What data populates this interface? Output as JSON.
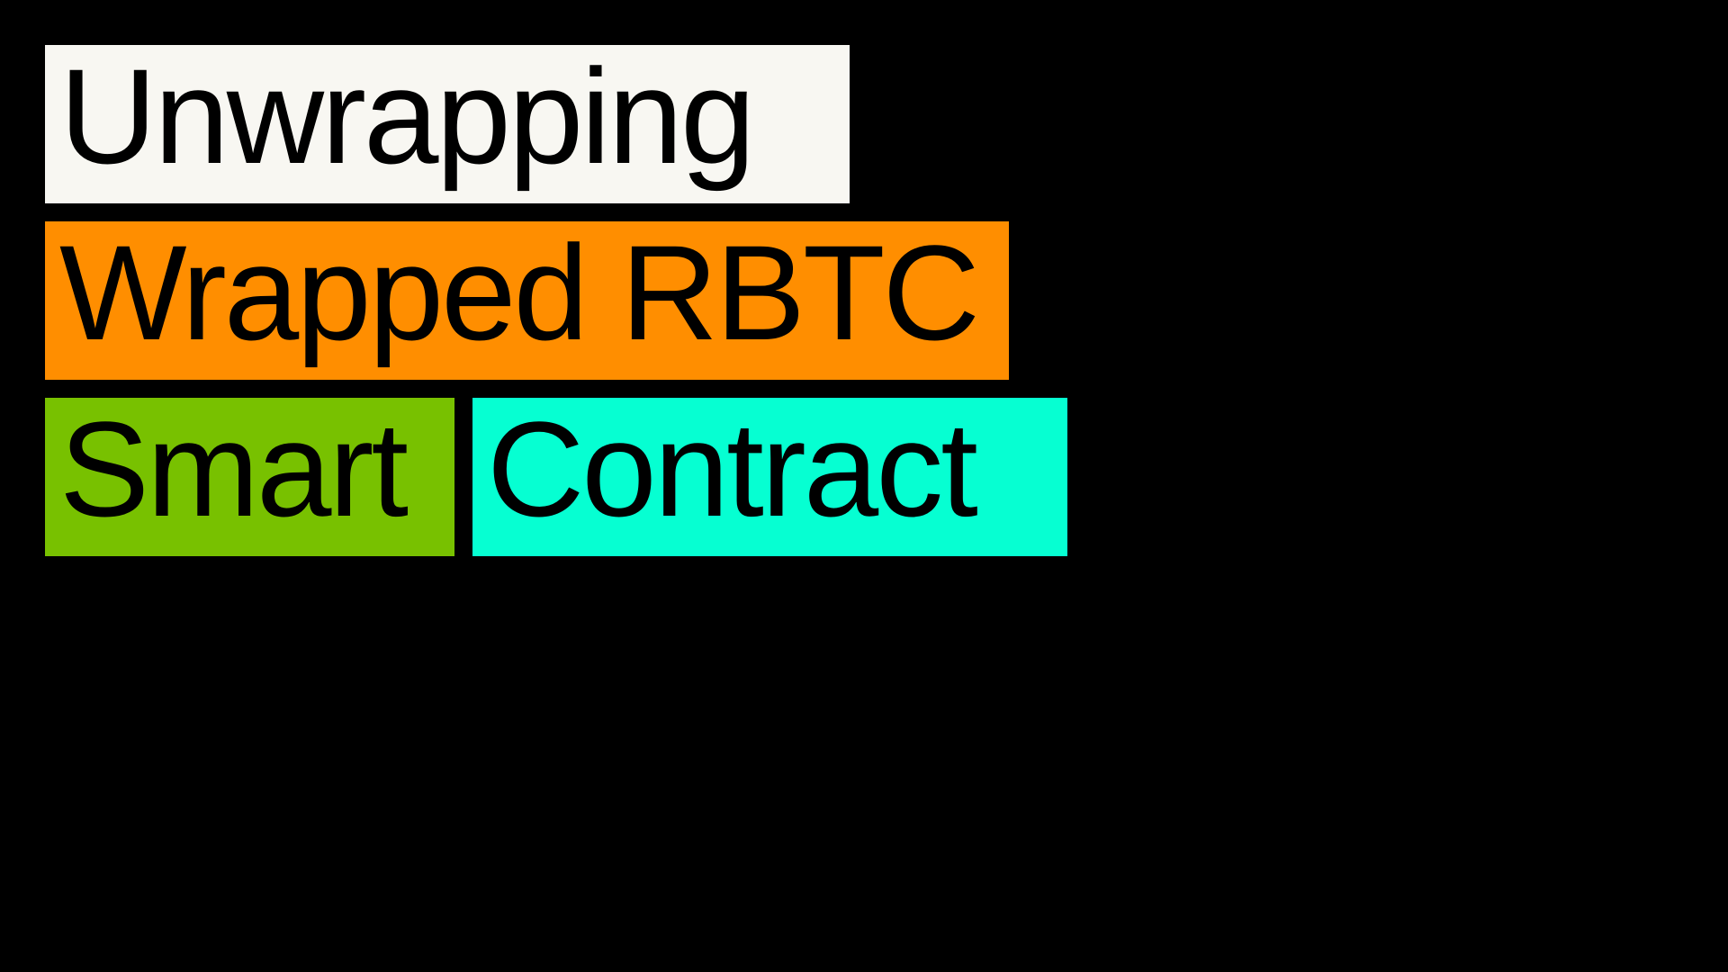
{
  "slide": {
    "background_color": "#000000",
    "labels": [
      {
        "text": "Unwrapping",
        "color": "#f8f7f2"
      },
      {
        "text": "Wrapped RBTC",
        "color": "#ff8e00"
      },
      {
        "text": "Smart",
        "color": "#78c100"
      },
      {
        "text": "Contract",
        "color": "#06ffd2"
      }
    ]
  }
}
